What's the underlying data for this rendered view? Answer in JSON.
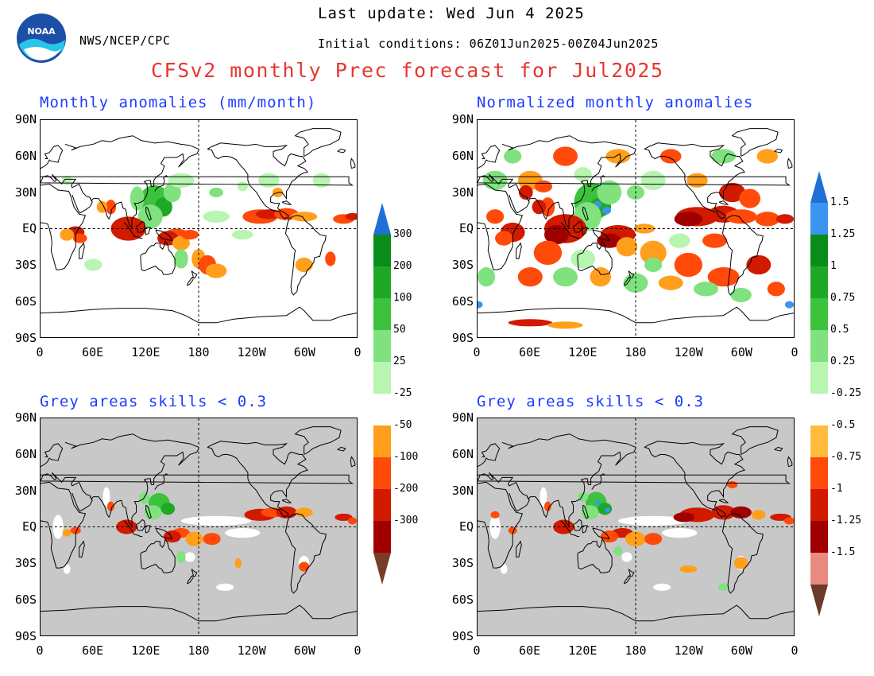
{
  "header": {
    "agency": "NWS/NCEP/CPC",
    "last_update": "Last update: Wed Jun  4 2025",
    "initial_conditions": "Initial conditions: 06Z01Jun2025-00Z04Jun2025",
    "title": "CFSv2 monthly Prec forecast for Jul2025",
    "logo_text": "NOAA"
  },
  "panels": {
    "top_left_title": "Monthly anomalies (mm/month)",
    "top_right_title": "Normalized monthly anomalies",
    "bottom_left_title": "Grey areas skills < 0.3",
    "bottom_right_title": "Grey areas skills < 0.3"
  },
  "axes": {
    "lat_labels": [
      "90N",
      "60N",
      "30N",
      "EQ",
      "30S",
      "60S",
      "90S"
    ],
    "lon_labels": [
      "0",
      "60E",
      "120E",
      "180",
      "120W",
      "60W",
      "0"
    ]
  },
  "colorbar_left": {
    "labels": [
      "300",
      "200",
      "100",
      "50",
      "25",
      "-25",
      "-50",
      "-100",
      "-200",
      "-300"
    ],
    "colors": {
      "top_arrow": "#1f6fd6",
      "c300": "#0a8c1a",
      "c200": "#1fa825",
      "c100": "#3cc23c",
      "c50": "#7fe27f",
      "c25": "#b8f5b0",
      "neutral": "#ffffff",
      "n25": "#ff9f1c",
      "n50": "#ff4a0a",
      "n100": "#d11a00",
      "n200": "#a00000",
      "bottom_arrow": "#7a3c2a"
    }
  },
  "colorbar_right": {
    "labels": [
      "1.5",
      "1.25",
      "1",
      "0.75",
      "0.5",
      "0.25",
      "-0.25",
      "-0.5",
      "-0.75",
      "-1",
      "-1.25",
      "-1.5"
    ],
    "colors": {
      "top_arrow": "#1f6fd6",
      "c150": "#3b95f0",
      "c125": "#0a8c1a",
      "c100": "#1fa825",
      "c075": "#3cc23c",
      "c050": "#7fe27f",
      "c025": "#b8f5b0",
      "neutral": "#ffffff",
      "n025": "#ffbb3c",
      "n050": "#ff4a0a",
      "n075": "#d11a00",
      "n100": "#a00000",
      "n125": "#e88a82",
      "bottom_arrow": "#6b3a2a"
    }
  },
  "map_colors": {
    "grey_mask": "#c8c8c8",
    "land_outline": "#000000"
  }
}
